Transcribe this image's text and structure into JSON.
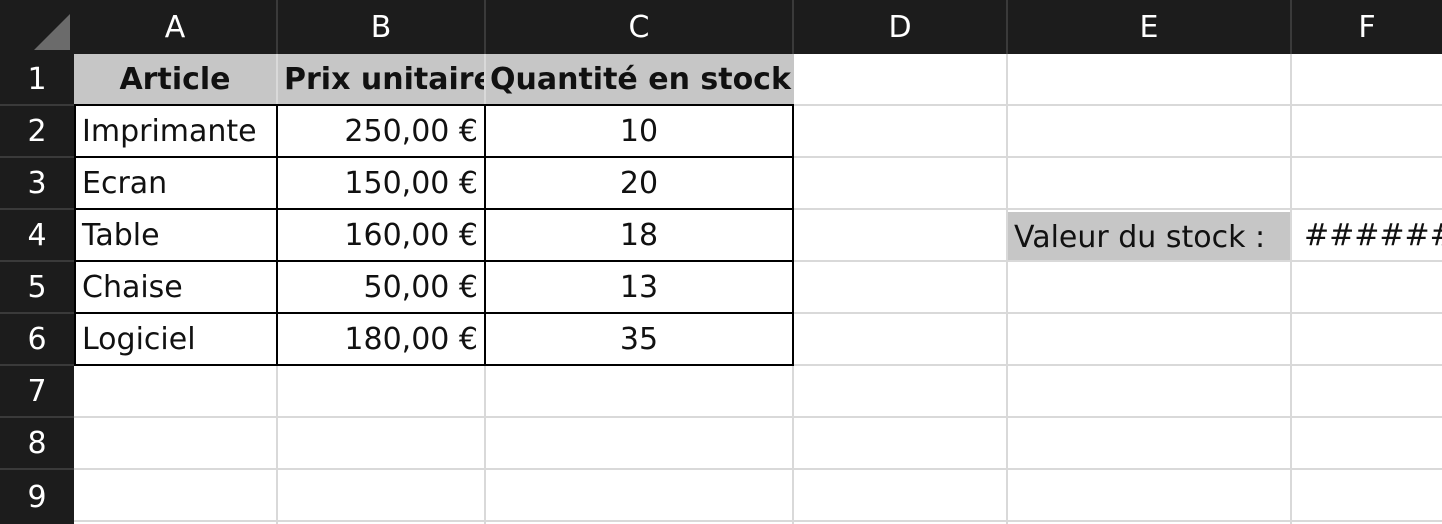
{
  "sheet": {
    "columns": [
      "A",
      "B",
      "C",
      "D",
      "E",
      "F"
    ],
    "rows": [
      "1",
      "2",
      "3",
      "4",
      "5",
      "6",
      "7",
      "8",
      "9"
    ],
    "headers": [
      "Article",
      "Prix unitaire",
      "Quantité en stock"
    ],
    "items": [
      {
        "article": "Imprimante",
        "price": "250,00 €",
        "qty": "10"
      },
      {
        "article": "Ecran",
        "price": "150,00 €",
        "qty": "20"
      },
      {
        "article": "Table",
        "price": "160,00 €",
        "qty": "18"
      },
      {
        "article": "Chaise",
        "price": "50,00 €",
        "qty": "13"
      },
      {
        "article": "Logiciel",
        "price": "180,00 €",
        "qty": "35"
      }
    ],
    "stock_label": "Valeur du stock :",
    "stock_value": "######"
  },
  "colors": {
    "header_bg": "#1c1c1c",
    "header_fill": "#c6c6c6",
    "gridline": "#d9d9d9"
  }
}
